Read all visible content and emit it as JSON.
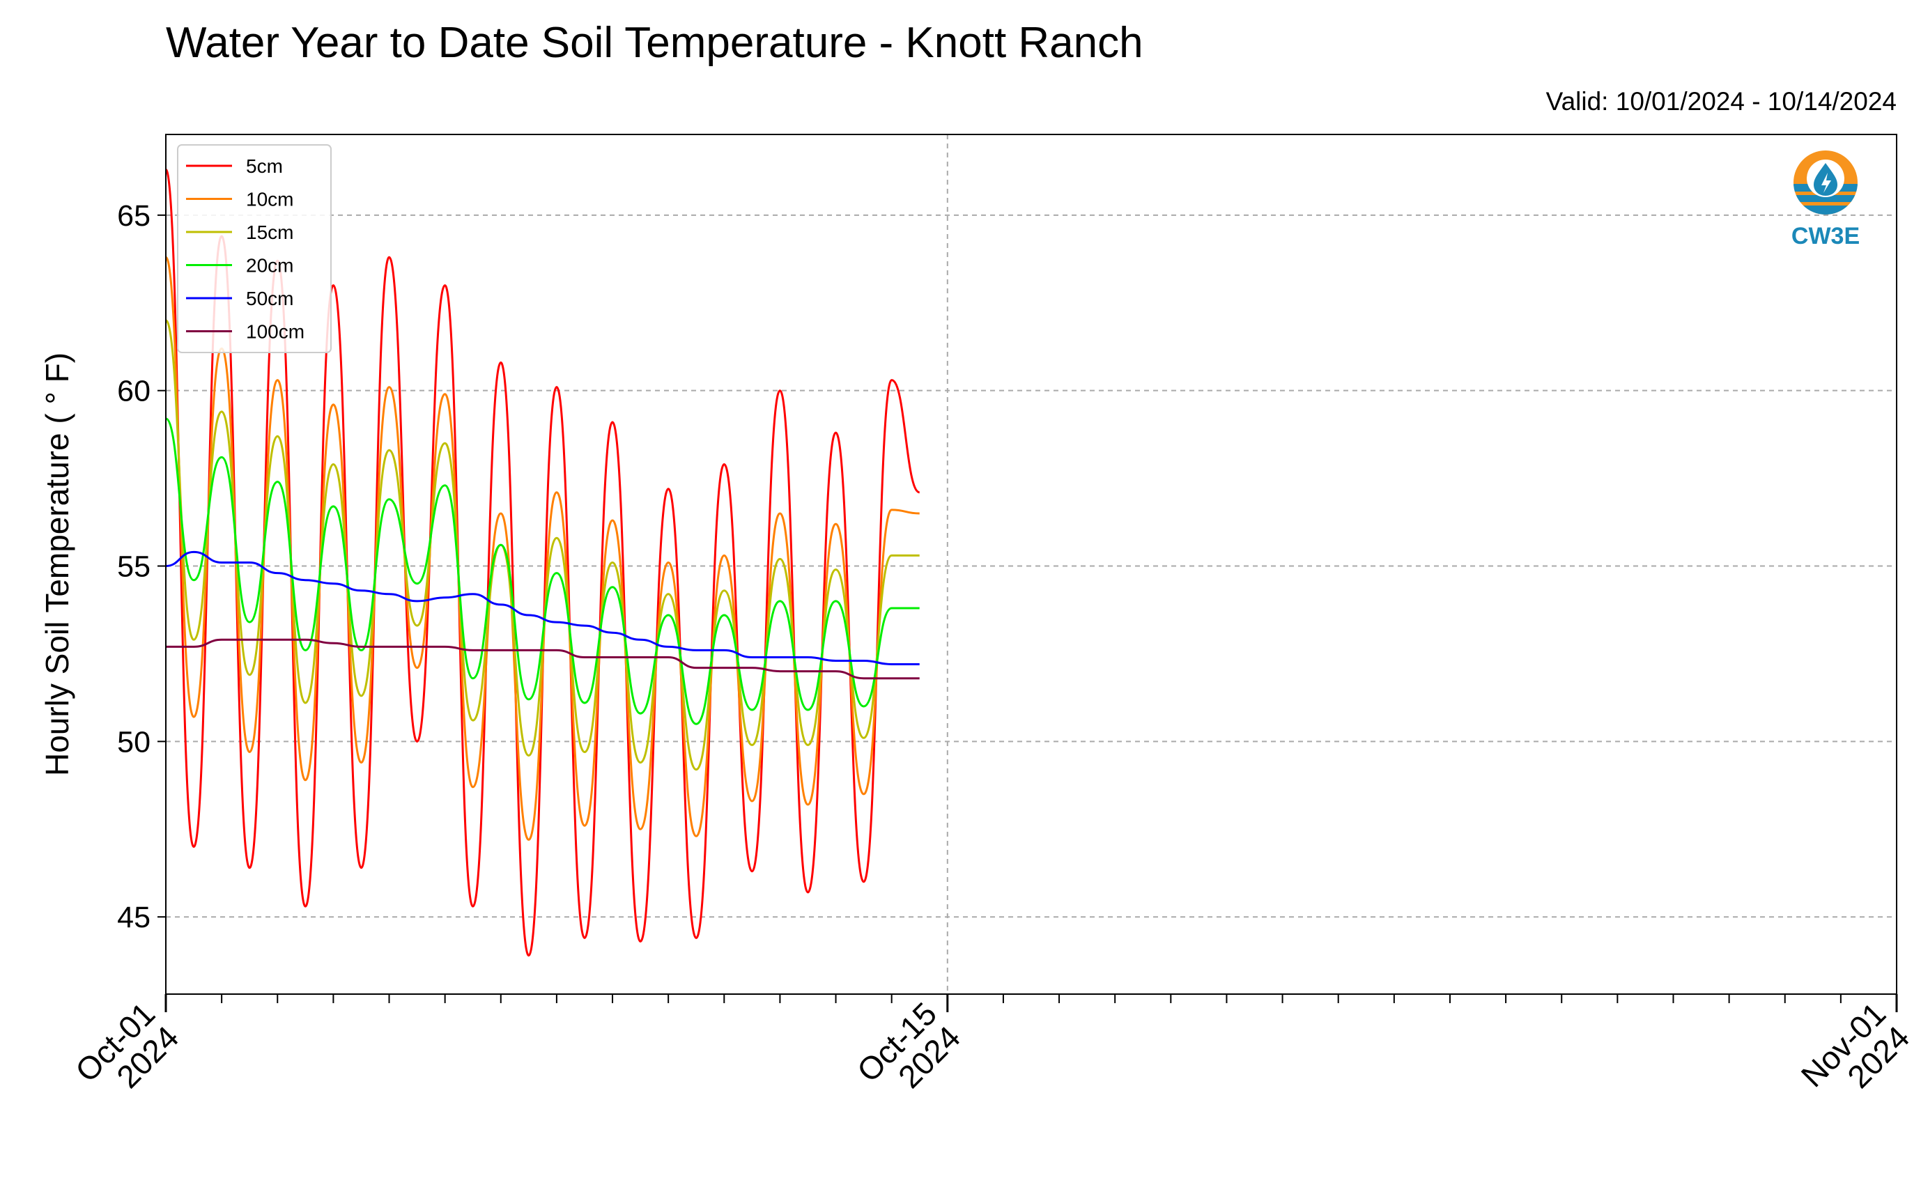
{
  "chart_data": {
    "type": "line",
    "title": "Water Year to Date Soil Temperature - Knott Ranch",
    "subtitle": "Valid: 10/01/2024 - 10/14/2024",
    "ylabel": "Hourly Soil Temperature ( ° F)",
    "xlabel": "",
    "xlim": [
      "2024-10-01",
      "2024-11-01"
    ],
    "ylim": [
      42.8,
      67.3
    ],
    "yticks": [
      45,
      50,
      55,
      60,
      65
    ],
    "xticks": [
      {
        "date": "2024-10-01",
        "label_line1": "Oct-01",
        "label_line2": "2024"
      },
      {
        "date": "2024-10-15",
        "label_line1": "Oct-15",
        "label_line2": "2024"
      },
      {
        "date": "2024-11-01",
        "label_line1": "Nov-01",
        "label_line2": "2024"
      }
    ],
    "minor_ticks": "daily",
    "grid": true,
    "legend_position": "top-left",
    "logo_text": "CW3E",
    "logo_colors": {
      "orange": "#f7941d",
      "blue": "#1b88b8"
    },
    "sample_interval_hours": 12,
    "series_x_start": "2024-10-01 00:00",
    "series_note": "values below sampled approx. every 12 hours from 2024-10-01 00:00 to 2024-10-14 02:00",
    "series": [
      {
        "name": "5cm",
        "color": "#ff0000",
        "values": [
          66.3,
          47.0,
          64.4,
          46.4,
          63.7,
          45.3,
          63.0,
          46.4,
          63.8,
          50.0,
          63.0,
          45.3,
          60.8,
          43.9,
          60.1,
          44.4,
          59.1,
          44.3,
          57.2,
          44.4,
          57.9,
          46.3,
          60.0,
          45.7,
          58.8,
          46.0,
          60.3,
          57.1
        ]
      },
      {
        "name": "10cm",
        "color": "#ff8000",
        "values": [
          63.8,
          50.7,
          61.2,
          49.7,
          60.3,
          48.9,
          59.6,
          49.4,
          60.1,
          52.1,
          59.9,
          48.7,
          56.5,
          47.2,
          57.1,
          47.6,
          56.3,
          47.5,
          55.1,
          47.3,
          55.3,
          48.3,
          56.5,
          48.2,
          56.2,
          48.5,
          56.6,
          56.5
        ]
      },
      {
        "name": "15cm",
        "color": "#bfbf00",
        "values": [
          62.0,
          52.9,
          59.4,
          51.9,
          58.7,
          51.1,
          57.9,
          51.3,
          58.3,
          53.3,
          58.5,
          50.6,
          55.6,
          49.6,
          55.8,
          49.7,
          55.1,
          49.4,
          54.2,
          49.2,
          54.3,
          49.9,
          55.2,
          49.9,
          54.9,
          50.1,
          55.3,
          55.3
        ]
      },
      {
        "name": "20cm",
        "color": "#00ee00",
        "values": [
          59.2,
          54.6,
          58.1,
          53.4,
          57.4,
          52.6,
          56.7,
          52.6,
          56.9,
          54.5,
          57.3,
          51.8,
          55.6,
          51.2,
          54.8,
          51.1,
          54.4,
          50.8,
          53.6,
          50.5,
          53.6,
          50.9,
          54.0,
          50.9,
          54.0,
          51.0,
          53.8,
          53.8
        ]
      },
      {
        "name": "50cm",
        "color": "#0000ff",
        "values": [
          55.0,
          55.4,
          55.1,
          55.1,
          54.8,
          54.6,
          54.5,
          54.3,
          54.2,
          54.0,
          54.1,
          54.2,
          53.9,
          53.6,
          53.4,
          53.3,
          53.1,
          52.9,
          52.7,
          52.6,
          52.6,
          52.4,
          52.4,
          52.4,
          52.3,
          52.3,
          52.2,
          52.2
        ]
      },
      {
        "name": "100cm",
        "color": "#800040",
        "values": [
          52.7,
          52.7,
          52.9,
          52.9,
          52.9,
          52.9,
          52.8,
          52.7,
          52.7,
          52.7,
          52.7,
          52.6,
          52.6,
          52.6,
          52.6,
          52.4,
          52.4,
          52.4,
          52.4,
          52.1,
          52.1,
          52.1,
          52.0,
          52.0,
          52.0,
          51.8,
          51.8,
          51.8
        ]
      }
    ]
  }
}
